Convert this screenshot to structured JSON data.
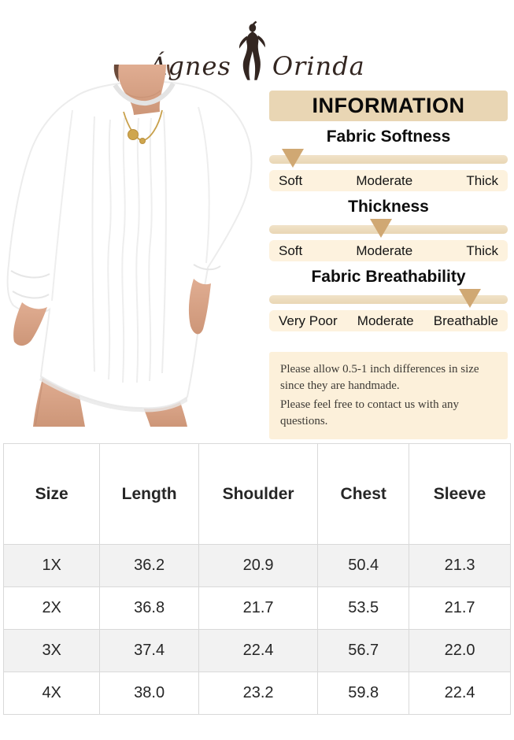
{
  "brand": {
    "name_left": "Ágnes",
    "name_right": "Orinda"
  },
  "info_panel": {
    "header": "INFORMATION",
    "scales": [
      {
        "title": "Fabric Softness",
        "labels": [
          "Soft",
          "Moderate",
          "Thick"
        ],
        "marker_percent": 10
      },
      {
        "title": "Thickness",
        "labels": [
          "Soft",
          "Moderate",
          "Thick"
        ],
        "marker_percent": 47
      },
      {
        "title": "Fabric Breathability",
        "labels": [
          "Very Poor",
          "Moderate",
          "Breathable"
        ],
        "marker_percent": 84
      }
    ],
    "note_lines": [
      "Please allow 0.5-1 inch differences in size since they are handmade.",
      "Please feel free to contact us with any questions."
    ]
  },
  "size_table": {
    "headers": [
      "Size",
      "Length",
      "Shoulder",
      "Chest",
      "Sleeve"
    ],
    "rows": [
      [
        "1X",
        "36.2",
        "20.9",
        "50.4",
        "21.3"
      ],
      [
        "2X",
        "36.8",
        "21.7",
        "53.5",
        "21.7"
      ],
      [
        "3X",
        "37.4",
        "22.4",
        "56.7",
        "22.0"
      ],
      [
        "4X",
        "38.0",
        "23.2",
        "59.8",
        "22.4"
      ]
    ]
  },
  "colors": {
    "tan": "#e9d6b4",
    "cream": "#fdf2de",
    "note_bg": "#fcf0da",
    "marker": "#d0a873",
    "table_alt_row": "#f2f2f2",
    "table_border": "#d9d9d9",
    "logo_ink": "#332621",
    "gold": "#c8a04b"
  }
}
